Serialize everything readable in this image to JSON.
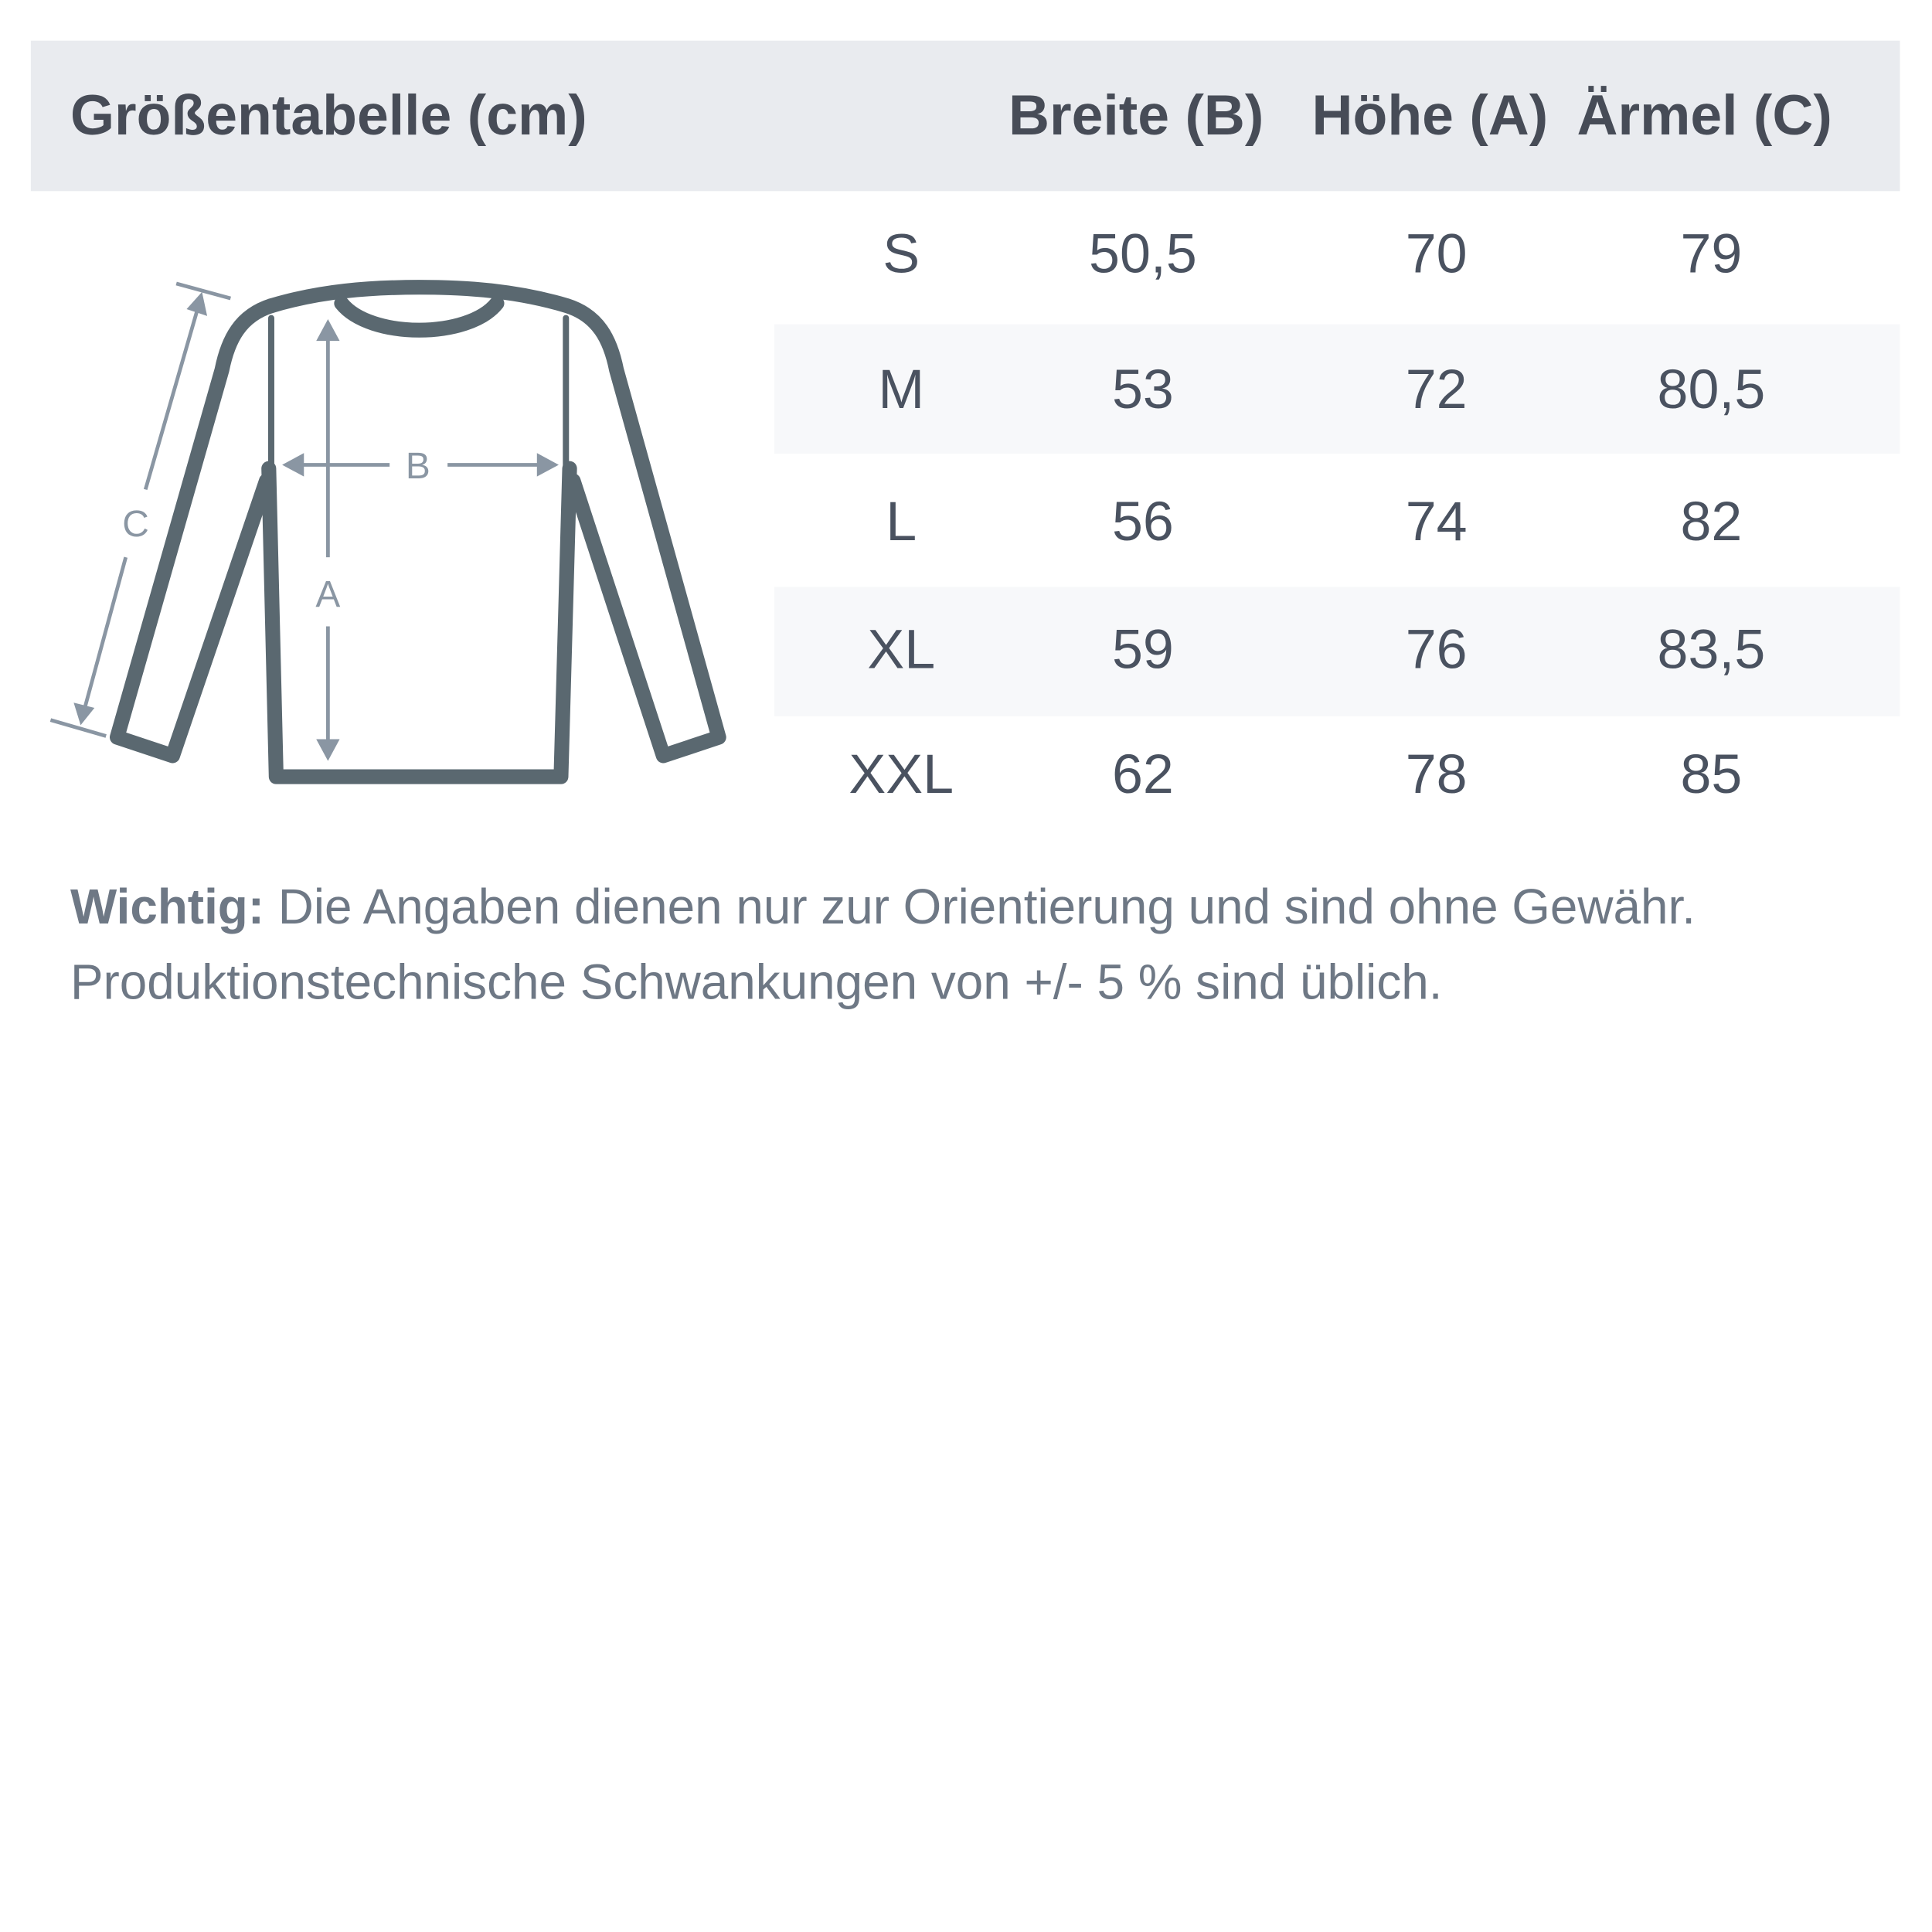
{
  "title": "Größentabelle (cm)",
  "columns": [
    "Breite (B)",
    "Höhe (A)",
    "Ärmel (C)"
  ],
  "rows": [
    {
      "size": "S",
      "values": [
        "50,5",
        "70",
        "79"
      ]
    },
    {
      "size": "M",
      "values": [
        "53",
        "72",
        "80,5"
      ]
    },
    {
      "size": "L",
      "values": [
        "56",
        "74",
        "82"
      ]
    },
    {
      "size": "XL",
      "values": [
        "59",
        "76",
        "83,5"
      ]
    },
    {
      "size": "XXL",
      "values": [
        "62",
        "78",
        "85"
      ]
    }
  ],
  "diagram": {
    "label_a": "A",
    "label_b": "B",
    "label_c": "C"
  },
  "note": {
    "bold": "Wichtig:",
    "line1": " Die Angaben dienen nur zur Orientierung und sind ohne Gewähr.",
    "line2": "Produktionstechnische Schwankungen von +/- 5 % sind üblich."
  },
  "colors": {
    "header_bg": "#e9ebef",
    "text": "#474c57",
    "garment": "#5a6870",
    "arrows": "#8a96a3"
  }
}
